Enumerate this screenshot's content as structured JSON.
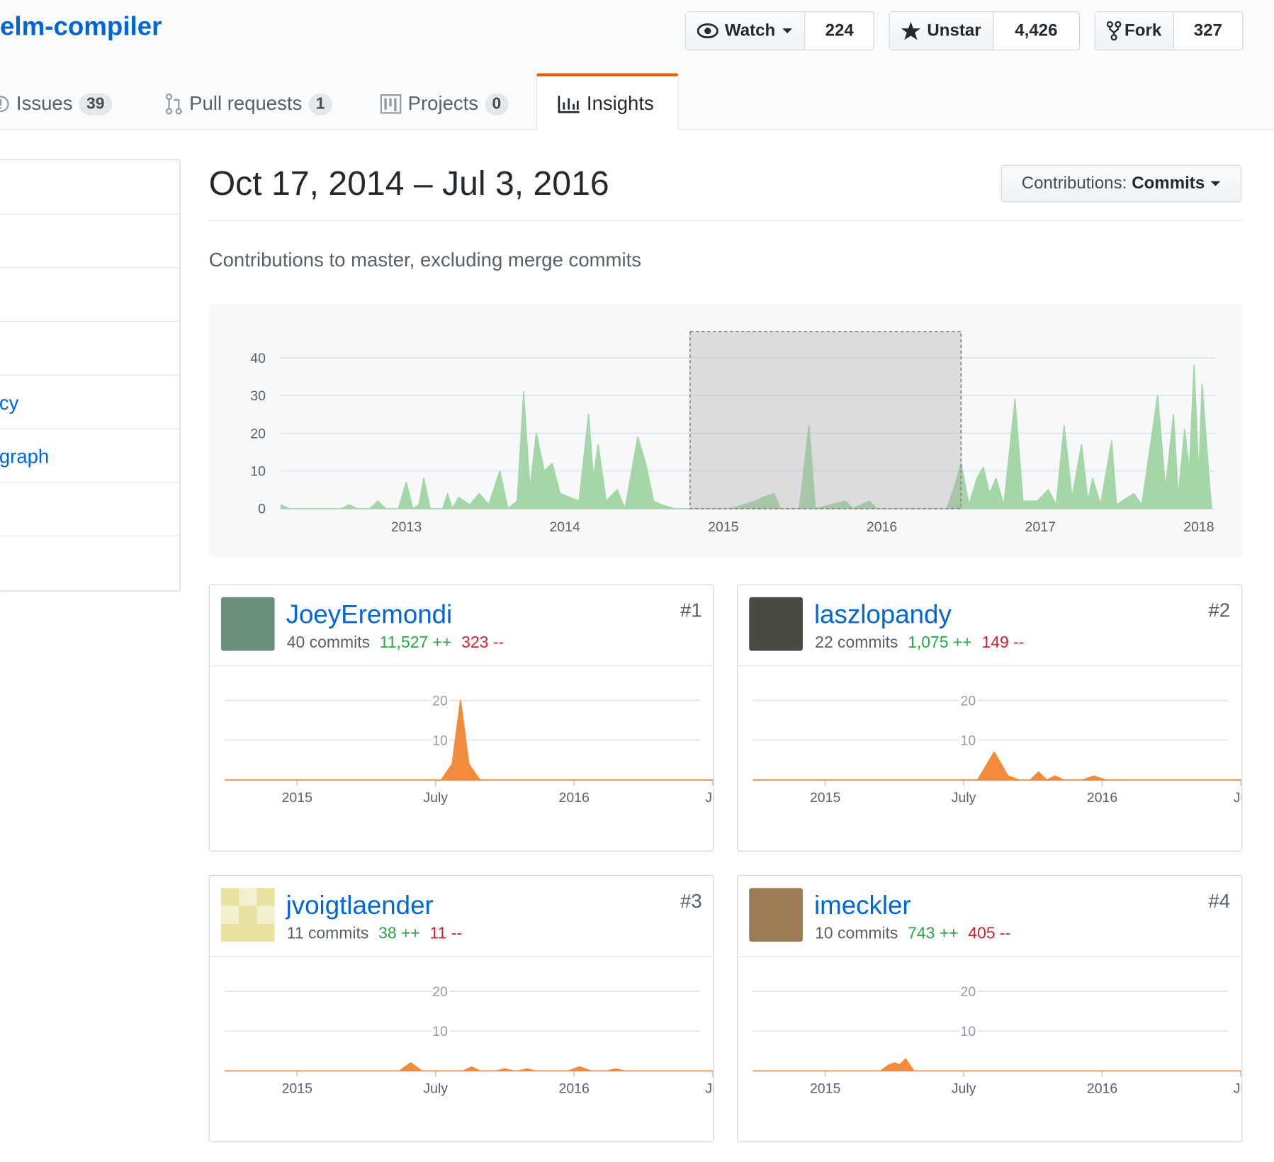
{
  "header": {
    "repo": "elm-compiler",
    "buttons": [
      {
        "label": "Watch",
        "count": "224"
      },
      {
        "label": "Unstar",
        "count": "4,426"
      },
      {
        "label": "Fork",
        "count": "327"
      }
    ]
  },
  "tabs": [
    {
      "label": "Issues",
      "count": "39"
    },
    {
      "label": "Pull requests",
      "count": "1"
    },
    {
      "label": "Projects",
      "count": "0"
    },
    {
      "label": "Insights"
    }
  ],
  "sidebar": [
    "cy",
    "graph"
  ],
  "range_title": "Oct 17, 2014 – Jul 3, 2016",
  "dropdown": {
    "label": "Contributions:",
    "value": "Commits"
  },
  "subtitle": "Contributions to master, excluding merge commits",
  "chart_data": [
    {
      "type": "area",
      "color": "#a5d6a7",
      "x": [
        2012.21,
        2012.26,
        2012.59,
        2012.64,
        2012.69,
        2012.77,
        2012.82,
        2012.87,
        2012.95,
        2013.0,
        2013.04,
        2013.08,
        2013.11,
        2013.15,
        2013.23,
        2013.26,
        2013.29,
        2013.33,
        2013.4,
        2013.46,
        2013.52,
        2013.59,
        2013.64,
        2013.7,
        2013.74,
        2013.78,
        2013.82,
        2013.87,
        2013.92,
        2013.97,
        2014.03,
        2014.09,
        2014.15,
        2014.18,
        2014.21,
        2014.26,
        2014.33,
        2014.38,
        2014.46,
        2014.51,
        2014.56,
        2014.61,
        2014.69,
        2015.05,
        2015.2,
        2015.25,
        2015.32,
        2015.36,
        2015.48,
        2015.54,
        2015.58,
        2015.77,
        2015.82,
        2015.92,
        2015.97,
        2016.41,
        2016.46,
        2016.5,
        2016.55,
        2016.6,
        2016.64,
        2016.68,
        2016.72,
        2016.77,
        2016.84,
        2016.89,
        2016.98,
        2017.05,
        2017.1,
        2017.15,
        2017.2,
        2017.26,
        2017.3,
        2017.33,
        2017.38,
        2017.45,
        2017.48,
        2017.59,
        2017.64,
        2017.74,
        2017.79,
        2017.84,
        2017.87,
        2017.91,
        2017.94,
        2017.97,
        2018.0,
        2018.02,
        2018.07,
        2018.08
      ],
      "values": [
        1,
        0,
        0,
        1,
        0,
        0,
        2,
        0,
        0,
        7,
        0,
        1,
        8,
        0,
        0,
        4,
        0,
        3,
        1,
        4,
        1,
        10,
        0,
        2,
        31,
        5,
        20,
        10,
        12,
        4,
        3,
        2,
        25,
        8,
        17,
        2,
        5,
        0,
        19,
        12,
        2,
        1,
        0,
        0,
        2,
        3,
        4,
        0,
        0,
        22,
        0,
        2,
        0,
        2,
        0,
        0,
        6,
        12,
        1,
        8,
        11,
        4,
        8,
        1,
        29,
        2,
        2,
        5,
        1,
        22,
        3,
        17,
        2,
        8,
        1,
        18,
        1,
        4,
        1,
        30,
        5,
        25,
        3,
        21,
        10,
        38,
        8,
        33,
        5,
        0
      ],
      "xlim": [
        2012.205,
        2018.1
      ],
      "ylim": [
        0,
        47
      ],
      "yticks": [
        0,
        10,
        20,
        30,
        40
      ],
      "xticks": [
        2013,
        2014,
        2015,
        2016,
        2017,
        2018
      ],
      "grid": true,
      "selection": [
        2014.79,
        2016.5
      ]
    },
    {
      "type": "area",
      "name": "JoeyEremondi",
      "rank": "#1",
      "commits": "40 commits",
      "additions": "11,527 ++",
      "deletions": "323 --",
      "color": "#f28b3c",
      "x": [
        2014.74,
        2015.52,
        2015.56,
        2015.59,
        2015.62,
        2015.66,
        2016.5
      ],
      "values": [
        0,
        0,
        4,
        20,
        4,
        0,
        0
      ],
      "xlim": [
        2014.74,
        2016.5
      ],
      "ylim": [
        0,
        20
      ],
      "yticks": [
        10,
        20
      ],
      "xticks": [
        2015,
        {
          "value": 2015.5,
          "label": "July"
        },
        2016,
        {
          "value": 2016.5,
          "label": "Ju"
        }
      ],
      "grid": true
    },
    {
      "type": "area",
      "name": "laszlopandy",
      "rank": "#2",
      "commits": "22 commits",
      "additions": "1,075 ++",
      "deletions": "149 --",
      "color": "#f28b3c",
      "x": [
        2014.74,
        2015.55,
        2015.61,
        2015.66,
        2015.7,
        2015.74,
        2015.77,
        2015.8,
        2015.83,
        2015.86,
        2015.93,
        2015.97,
        2016.01,
        2016.5
      ],
      "values": [
        0,
        0,
        7,
        1,
        0,
        0,
        2,
        0,
        1,
        0,
        0,
        1,
        0,
        0
      ],
      "xlim": [
        2014.74,
        2016.5
      ],
      "ylim": [
        0,
        20
      ],
      "yticks": [
        10,
        20
      ],
      "xticks": [
        2015,
        {
          "value": 2015.5,
          "label": "July"
        },
        2016,
        {
          "value": 2016.5,
          "label": "Ju"
        }
      ],
      "grid": true
    },
    {
      "type": "area",
      "name": "jvoigtlaender",
      "rank": "#3",
      "commits": "11 commits",
      "additions": "38 ++",
      "deletions": "11 --",
      "color": "#f28b3c",
      "x": [
        2014.74,
        2015.37,
        2015.41,
        2015.45,
        2015.6,
        2015.63,
        2015.66,
        2015.72,
        2015.75,
        2015.78,
        2015.8,
        2015.83,
        2015.86,
        2015.98,
        2016.02,
        2016.06,
        2016.12,
        2016.15,
        2016.18,
        2016.5
      ],
      "values": [
        0,
        0,
        2,
        0,
        0,
        1,
        0,
        0,
        0.5,
        0,
        0,
        0.5,
        0,
        0,
        1,
        0,
        0,
        0.5,
        0,
        0
      ],
      "xlim": [
        2014.74,
        2016.5
      ],
      "ylim": [
        0,
        20
      ],
      "yticks": [
        10,
        20
      ],
      "xticks": [
        2015,
        {
          "value": 2015.5,
          "label": "July"
        },
        2016,
        {
          "value": 2016.5,
          "label": "Ju"
        }
      ],
      "grid": true
    },
    {
      "type": "area",
      "name": "imeckler",
      "rank": "#4",
      "commits": "10 commits",
      "additions": "743 ++",
      "deletions": "405 --",
      "color": "#f28b3c",
      "x": [
        2014.74,
        2015.2,
        2015.23,
        2015.25,
        2015.27,
        2015.29,
        2015.32,
        2016.5
      ],
      "values": [
        0,
        0,
        1.5,
        2,
        1.5,
        3,
        0,
        0
      ],
      "xlim": [
        2014.74,
        2016.5
      ],
      "ylim": [
        0,
        20
      ],
      "yticks": [
        10,
        20
      ],
      "xticks": [
        2015,
        {
          "value": 2015.5,
          "label": "July"
        },
        2016,
        {
          "value": 2016.5,
          "label": "Ju"
        }
      ],
      "grid": true
    }
  ]
}
